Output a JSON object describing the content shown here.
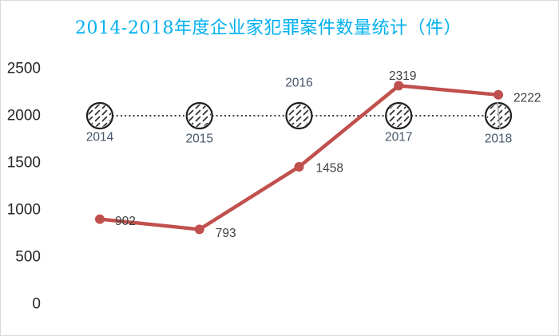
{
  "title": {
    "text": "2014-2018年度企业家犯罪案件数量统计（件）"
  },
  "colors": {
    "title": "#00B0F0",
    "series_line": "#C0504D",
    "value_label": "#404040",
    "year_label": "#44546A",
    "axis_label": "#262626",
    "dotted_line": "#3F3F3F",
    "marker_stroke": "#1F1F1F",
    "hatch_stroke": "#2E2E2E",
    "leader_line": "#ABABAB",
    "border": "#D9D9D9",
    "background": "#FFFFFF"
  },
  "chart_data": {
    "type": "line",
    "title": "2014-2018年度企业家犯罪案件数量统计（件）",
    "categories": [
      "2014",
      "2015",
      "2016",
      "2017",
      "2018"
    ],
    "series": [
      {
        "values": [
          902,
          793,
          1458,
          2319,
          2222
        ],
        "color": "#C0504D",
        "marker": "filled-dot",
        "line_style": "solid",
        "data_labels": [
          902,
          793,
          1458,
          2319,
          2222
        ]
      },
      {
        "values": [
          2000,
          2000,
          2000,
          2000,
          2000
        ],
        "color": "#3F3F3F",
        "marker": "hatched-circle",
        "line_style": "dotted",
        "data_labels": [
          "2014",
          "2015",
          "2016",
          "2017",
          "2018"
        ]
      }
    ],
    "xlabel": "",
    "ylabel": "",
    "ylim": [
      0,
      2500
    ],
    "yticks": [
      0,
      500,
      1000,
      1500,
      2000,
      2500
    ],
    "grid": false,
    "legend": "none"
  }
}
